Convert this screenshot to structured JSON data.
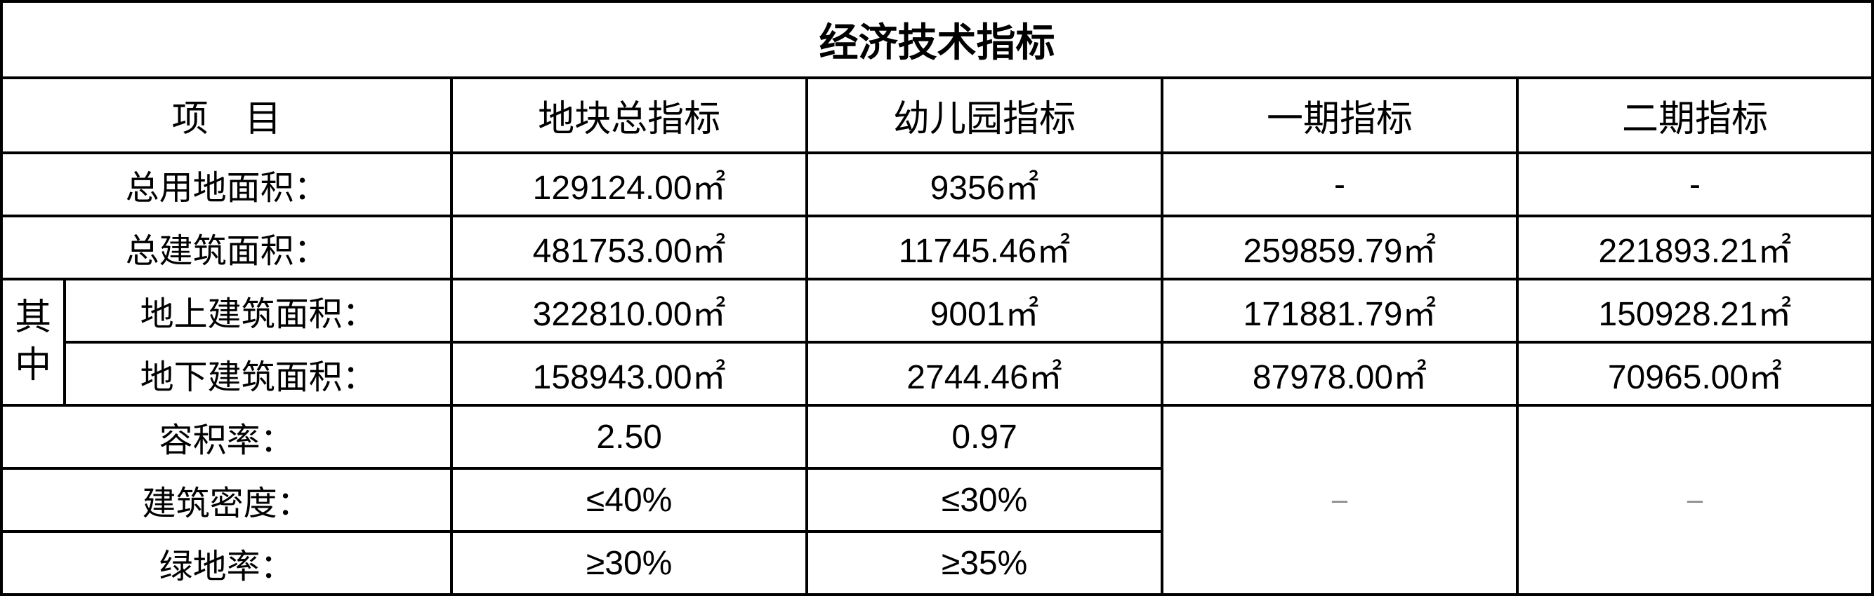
{
  "table": {
    "type": "table",
    "title": "经济技术指标",
    "border_color": "#000000",
    "border_width": 4,
    "background_color": "#ffffff",
    "text_color": "#000000",
    "dash_color": "#888888",
    "title_fontsize": 56,
    "header_fontsize": 52,
    "cell_fontsize": 48,
    "font_family": "Microsoft YaHei, SimHei, sans-serif",
    "columns": {
      "project": "项　目",
      "total": "地块总指标",
      "kindergarten": "幼儿园指标",
      "phase1": "一期指标",
      "phase2": "二期指标"
    },
    "column_widths": {
      "narrow": 90,
      "label": 550,
      "data": 505
    },
    "sub_label": "其中",
    "rows": [
      {
        "label": "总用地面积：",
        "total": "129124.00㎡",
        "kindergarten": "9356㎡",
        "phase1": "-",
        "phase2": "-"
      },
      {
        "label": "总建筑面积：",
        "total": "481753.00㎡",
        "kindergarten": "11745.46㎡",
        "phase1": "259859.79㎡",
        "phase2": "221893.21㎡"
      },
      {
        "label": "地上建筑面积：",
        "total": "322810.00㎡",
        "kindergarten": "9001㎡",
        "phase1": "171881.79㎡",
        "phase2": "150928.21㎡"
      },
      {
        "label": "地下建筑面积：",
        "total": "158943.00㎡",
        "kindergarten": "2744.46㎡",
        "phase1": "87978.00㎡",
        "phase2": "70965.00㎡"
      },
      {
        "label": "容积率：",
        "total": "2.50",
        "kindergarten": "0.97",
        "phase1": "",
        "phase2": ""
      },
      {
        "label": "建筑密度：",
        "total": "≤40%",
        "kindergarten": "≤30%",
        "phase1": "–",
        "phase2": "–"
      },
      {
        "label": "绿地率：",
        "total": "≥30%",
        "kindergarten": "≥35%",
        "phase1": "",
        "phase2": ""
      }
    ]
  }
}
